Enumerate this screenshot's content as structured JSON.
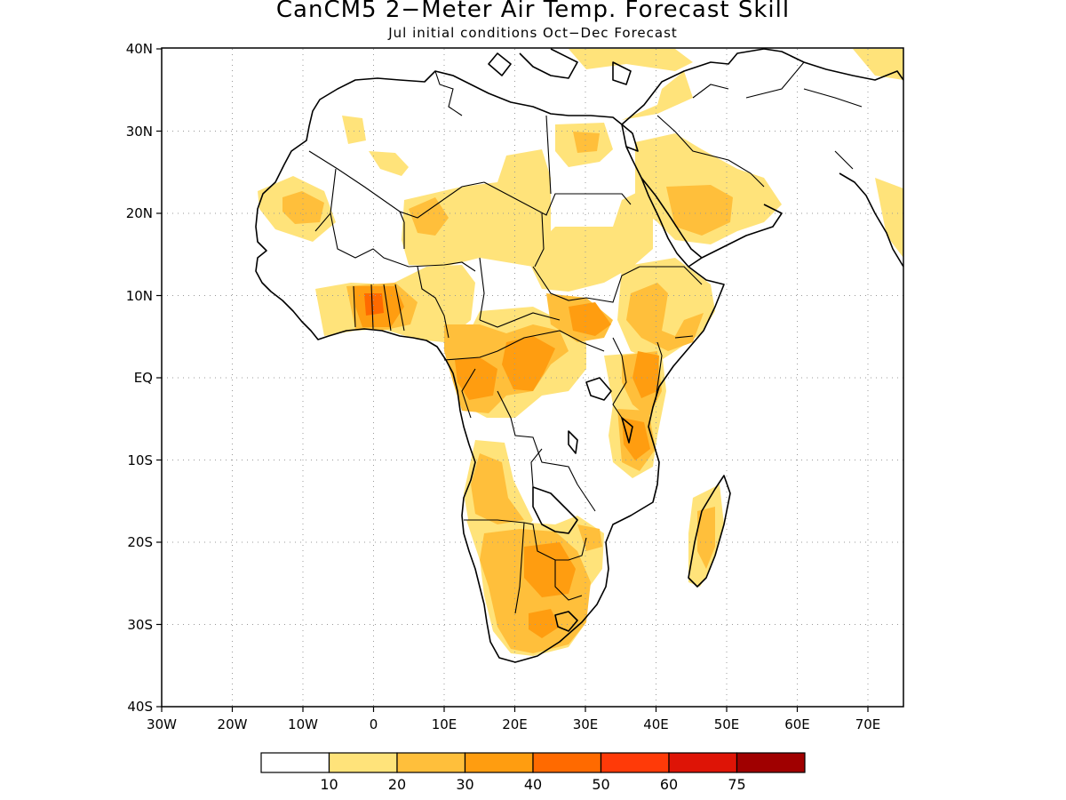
{
  "title": "CanCM5 2−Meter Air Temp. Forecast Skill",
  "subtitle": "Jul initial conditions  Oct−Dec Forecast",
  "chart_data": {
    "type": "heatmap",
    "x_ticks": [
      "30W",
      "20W",
      "10W",
      "0",
      "10E",
      "20E",
      "30E",
      "40E",
      "50E",
      "60E",
      "70E"
    ],
    "y_ticks": [
      "40N",
      "30N",
      "20N",
      "10N",
      "EQ",
      "10S",
      "20S",
      "30S",
      "40S"
    ],
    "xlim": [
      -30,
      75
    ],
    "ylim": [
      -40,
      40
    ],
    "grid": true,
    "colorbar": {
      "labels": [
        "10",
        "20",
        "30",
        "40",
        "50",
        "60",
        "75"
      ],
      "colors": [
        "#ffffff",
        "#ffe37a",
        "#ffbf3b",
        "#ff9d10",
        "#ff6a00",
        "#ff3a08",
        "#de1406",
        "#a00000"
      ]
    }
  }
}
